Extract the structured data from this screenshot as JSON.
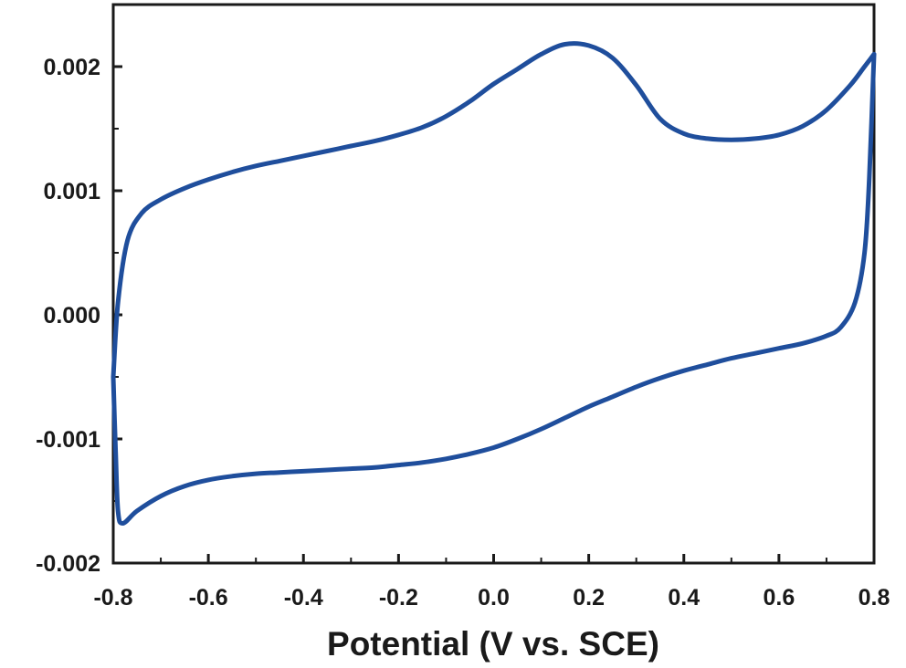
{
  "chart_data": {
    "type": "line",
    "title": "",
    "xlabel": "Potential (V vs. SCE)",
    "ylabel": "",
    "xlim": [
      -0.8,
      0.8
    ],
    "ylim": [
      -0.002,
      0.0025
    ],
    "x_ticks": [
      "-0.8",
      "-0.6",
      "-0.4",
      "-0.2",
      "0.0",
      "0.2",
      "0.4",
      "0.6",
      "0.8"
    ],
    "y_ticks": [
      "0.002",
      "0.001",
      "0.000",
      "-0.001",
      "-0.002"
    ],
    "grid": false,
    "line_color": "#1f4e9c",
    "series": [
      {
        "x": [
          0.8,
          0.78,
          0.75,
          0.7,
          0.65,
          0.6,
          0.55,
          0.5,
          0.45,
          0.4,
          0.35,
          0.3,
          0.25,
          0.2,
          0.15,
          0.1,
          0.05,
          0.0,
          -0.05,
          -0.1,
          -0.15,
          -0.2,
          -0.25,
          -0.3,
          -0.35,
          -0.4,
          -0.45,
          -0.5,
          -0.55,
          -0.6,
          -0.65,
          -0.7,
          -0.74,
          -0.77,
          -0.79,
          -0.8
        ],
        "y": [
          0.0021,
          0.002,
          0.00185,
          0.00165,
          0.00152,
          0.00145,
          0.00142,
          0.00141,
          0.00142,
          0.00146,
          0.00158,
          0.00185,
          0.00207,
          0.00217,
          0.00218,
          0.0021,
          0.00198,
          0.00186,
          0.00172,
          0.0016,
          0.00151,
          0.00145,
          0.0014,
          0.00136,
          0.00132,
          0.00128,
          0.00124,
          0.0012,
          0.00115,
          0.00109,
          0.00102,
          0.00093,
          0.00082,
          0.0006,
          0.0001,
          -0.0005
        ]
      },
      {
        "x": [
          -0.8,
          -0.795,
          -0.79,
          -0.78,
          -0.75,
          -0.7,
          -0.65,
          -0.6,
          -0.55,
          -0.5,
          -0.45,
          -0.4,
          -0.35,
          -0.3,
          -0.25,
          -0.2,
          -0.15,
          -0.1,
          -0.05,
          0.0,
          0.05,
          0.1,
          0.15,
          0.2,
          0.25,
          0.3,
          0.35,
          0.4,
          0.45,
          0.5,
          0.55,
          0.6,
          0.65,
          0.7,
          0.73,
          0.76,
          0.78,
          0.79,
          0.8
        ],
        "y": [
          -0.0005,
          -0.0011,
          -0.00158,
          -0.00168,
          -0.00158,
          -0.00146,
          -0.00138,
          -0.00133,
          -0.0013,
          -0.00128,
          -0.00127,
          -0.00126,
          -0.00125,
          -0.00124,
          -0.00123,
          -0.00121,
          -0.00119,
          -0.00116,
          -0.00112,
          -0.00107,
          -0.001,
          -0.00092,
          -0.00083,
          -0.00074,
          -0.00066,
          -0.00058,
          -0.00051,
          -0.00045,
          -0.0004,
          -0.00035,
          -0.00031,
          -0.00027,
          -0.00023,
          -0.00017,
          -0.0001,
          0.0001,
          0.0005,
          0.0011,
          0.0021
        ]
      }
    ]
  }
}
